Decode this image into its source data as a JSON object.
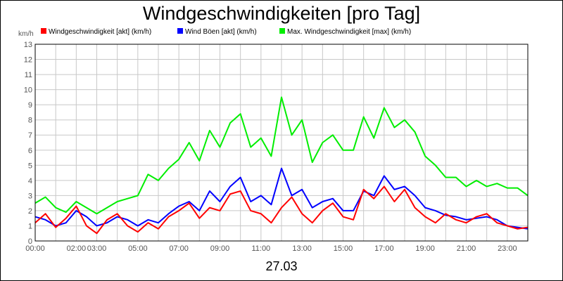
{
  "chart_data": {
    "type": "line",
    "title": "Windgeschwindigkeiten [pro Tag]",
    "ylabel": "km/h",
    "xlabel": "27.03",
    "ylim": [
      0,
      13
    ],
    "xlim": [
      "00:00",
      "24:00"
    ],
    "grid": true,
    "legend_position": "top",
    "y_ticks": [
      "0",
      "1",
      "2",
      "3",
      "4",
      "5",
      "6",
      "7",
      "8",
      "9",
      "10",
      "11",
      "12",
      "13"
    ],
    "x_ticks": [
      "00:00",
      "02:00",
      "03:00",
      "05:00",
      "07:00",
      "09:00",
      "11:00",
      "13:00",
      "15:00",
      "17:00",
      "19:00",
      "21:00",
      "23:00"
    ],
    "x": [
      "00:00",
      "00:30",
      "01:00",
      "01:30",
      "02:00",
      "02:30",
      "03:00",
      "03:30",
      "04:00",
      "04:30",
      "05:00",
      "05:30",
      "06:00",
      "06:30",
      "07:00",
      "07:30",
      "08:00",
      "08:30",
      "09:00",
      "09:30",
      "10:00",
      "10:30",
      "11:00",
      "11:30",
      "12:00",
      "12:30",
      "13:00",
      "13:30",
      "14:00",
      "14:30",
      "15:00",
      "15:30",
      "16:00",
      "16:30",
      "17:00",
      "17:30",
      "18:00",
      "18:30",
      "19:00",
      "19:30",
      "20:00",
      "20:30",
      "21:00",
      "21:30",
      "22:00",
      "22:30",
      "23:00",
      "23:30",
      "24:00"
    ],
    "series": [
      {
        "name": "Windgeschwindigkeit [akt] (km/h)",
        "color": "#ff0000",
        "values": [
          1.2,
          1.8,
          0.9,
          1.5,
          2.3,
          1.0,
          0.5,
          1.4,
          1.8,
          1.0,
          0.6,
          1.2,
          0.8,
          1.6,
          2.0,
          2.5,
          1.5,
          2.2,
          2.0,
          3.1,
          3.3,
          2.0,
          1.8,
          1.2,
          2.2,
          2.9,
          1.8,
          1.2,
          2.0,
          2.5,
          1.6,
          1.4,
          3.4,
          2.8,
          3.6,
          2.6,
          3.4,
          2.2,
          1.6,
          1.2,
          1.8,
          1.4,
          1.2,
          1.6,
          1.8,
          1.2,
          1.0,
          0.8,
          0.9
        ]
      },
      {
        "name": "Wind Böen [akt] (km/h)",
        "color": "#0000ff",
        "values": [
          1.6,
          1.4,
          1.0,
          1.2,
          2.0,
          1.6,
          1.0,
          1.2,
          1.6,
          1.4,
          1.0,
          1.4,
          1.2,
          1.8,
          2.3,
          2.6,
          2.0,
          3.3,
          2.6,
          3.6,
          4.2,
          2.6,
          3.0,
          2.4,
          4.8,
          3.0,
          3.4,
          2.2,
          2.6,
          2.8,
          2.0,
          2.0,
          3.3,
          3.0,
          4.3,
          3.4,
          3.6,
          3.0,
          2.2,
          2.0,
          1.7,
          1.6,
          1.4,
          1.5,
          1.6,
          1.4,
          1.0,
          0.9,
          0.8
        ]
      },
      {
        "name": "Max. Windgeschwindigkeit [max] (km/h)",
        "color": "#00ee00",
        "values": [
          2.5,
          2.9,
          2.2,
          1.9,
          2.6,
          2.2,
          1.8,
          2.2,
          2.6,
          2.8,
          3.0,
          4.4,
          4.0,
          4.8,
          5.4,
          6.5,
          5.3,
          7.3,
          6.2,
          7.8,
          8.4,
          6.2,
          6.8,
          5.6,
          9.5,
          7.0,
          8.0,
          5.2,
          6.5,
          7.0,
          6.0,
          6.0,
          8.2,
          6.8,
          8.8,
          7.5,
          8.0,
          7.2,
          5.6,
          5.0,
          4.2,
          4.2,
          3.6,
          4.0,
          3.6,
          3.8,
          3.5,
          3.5,
          3.0
        ]
      }
    ]
  }
}
